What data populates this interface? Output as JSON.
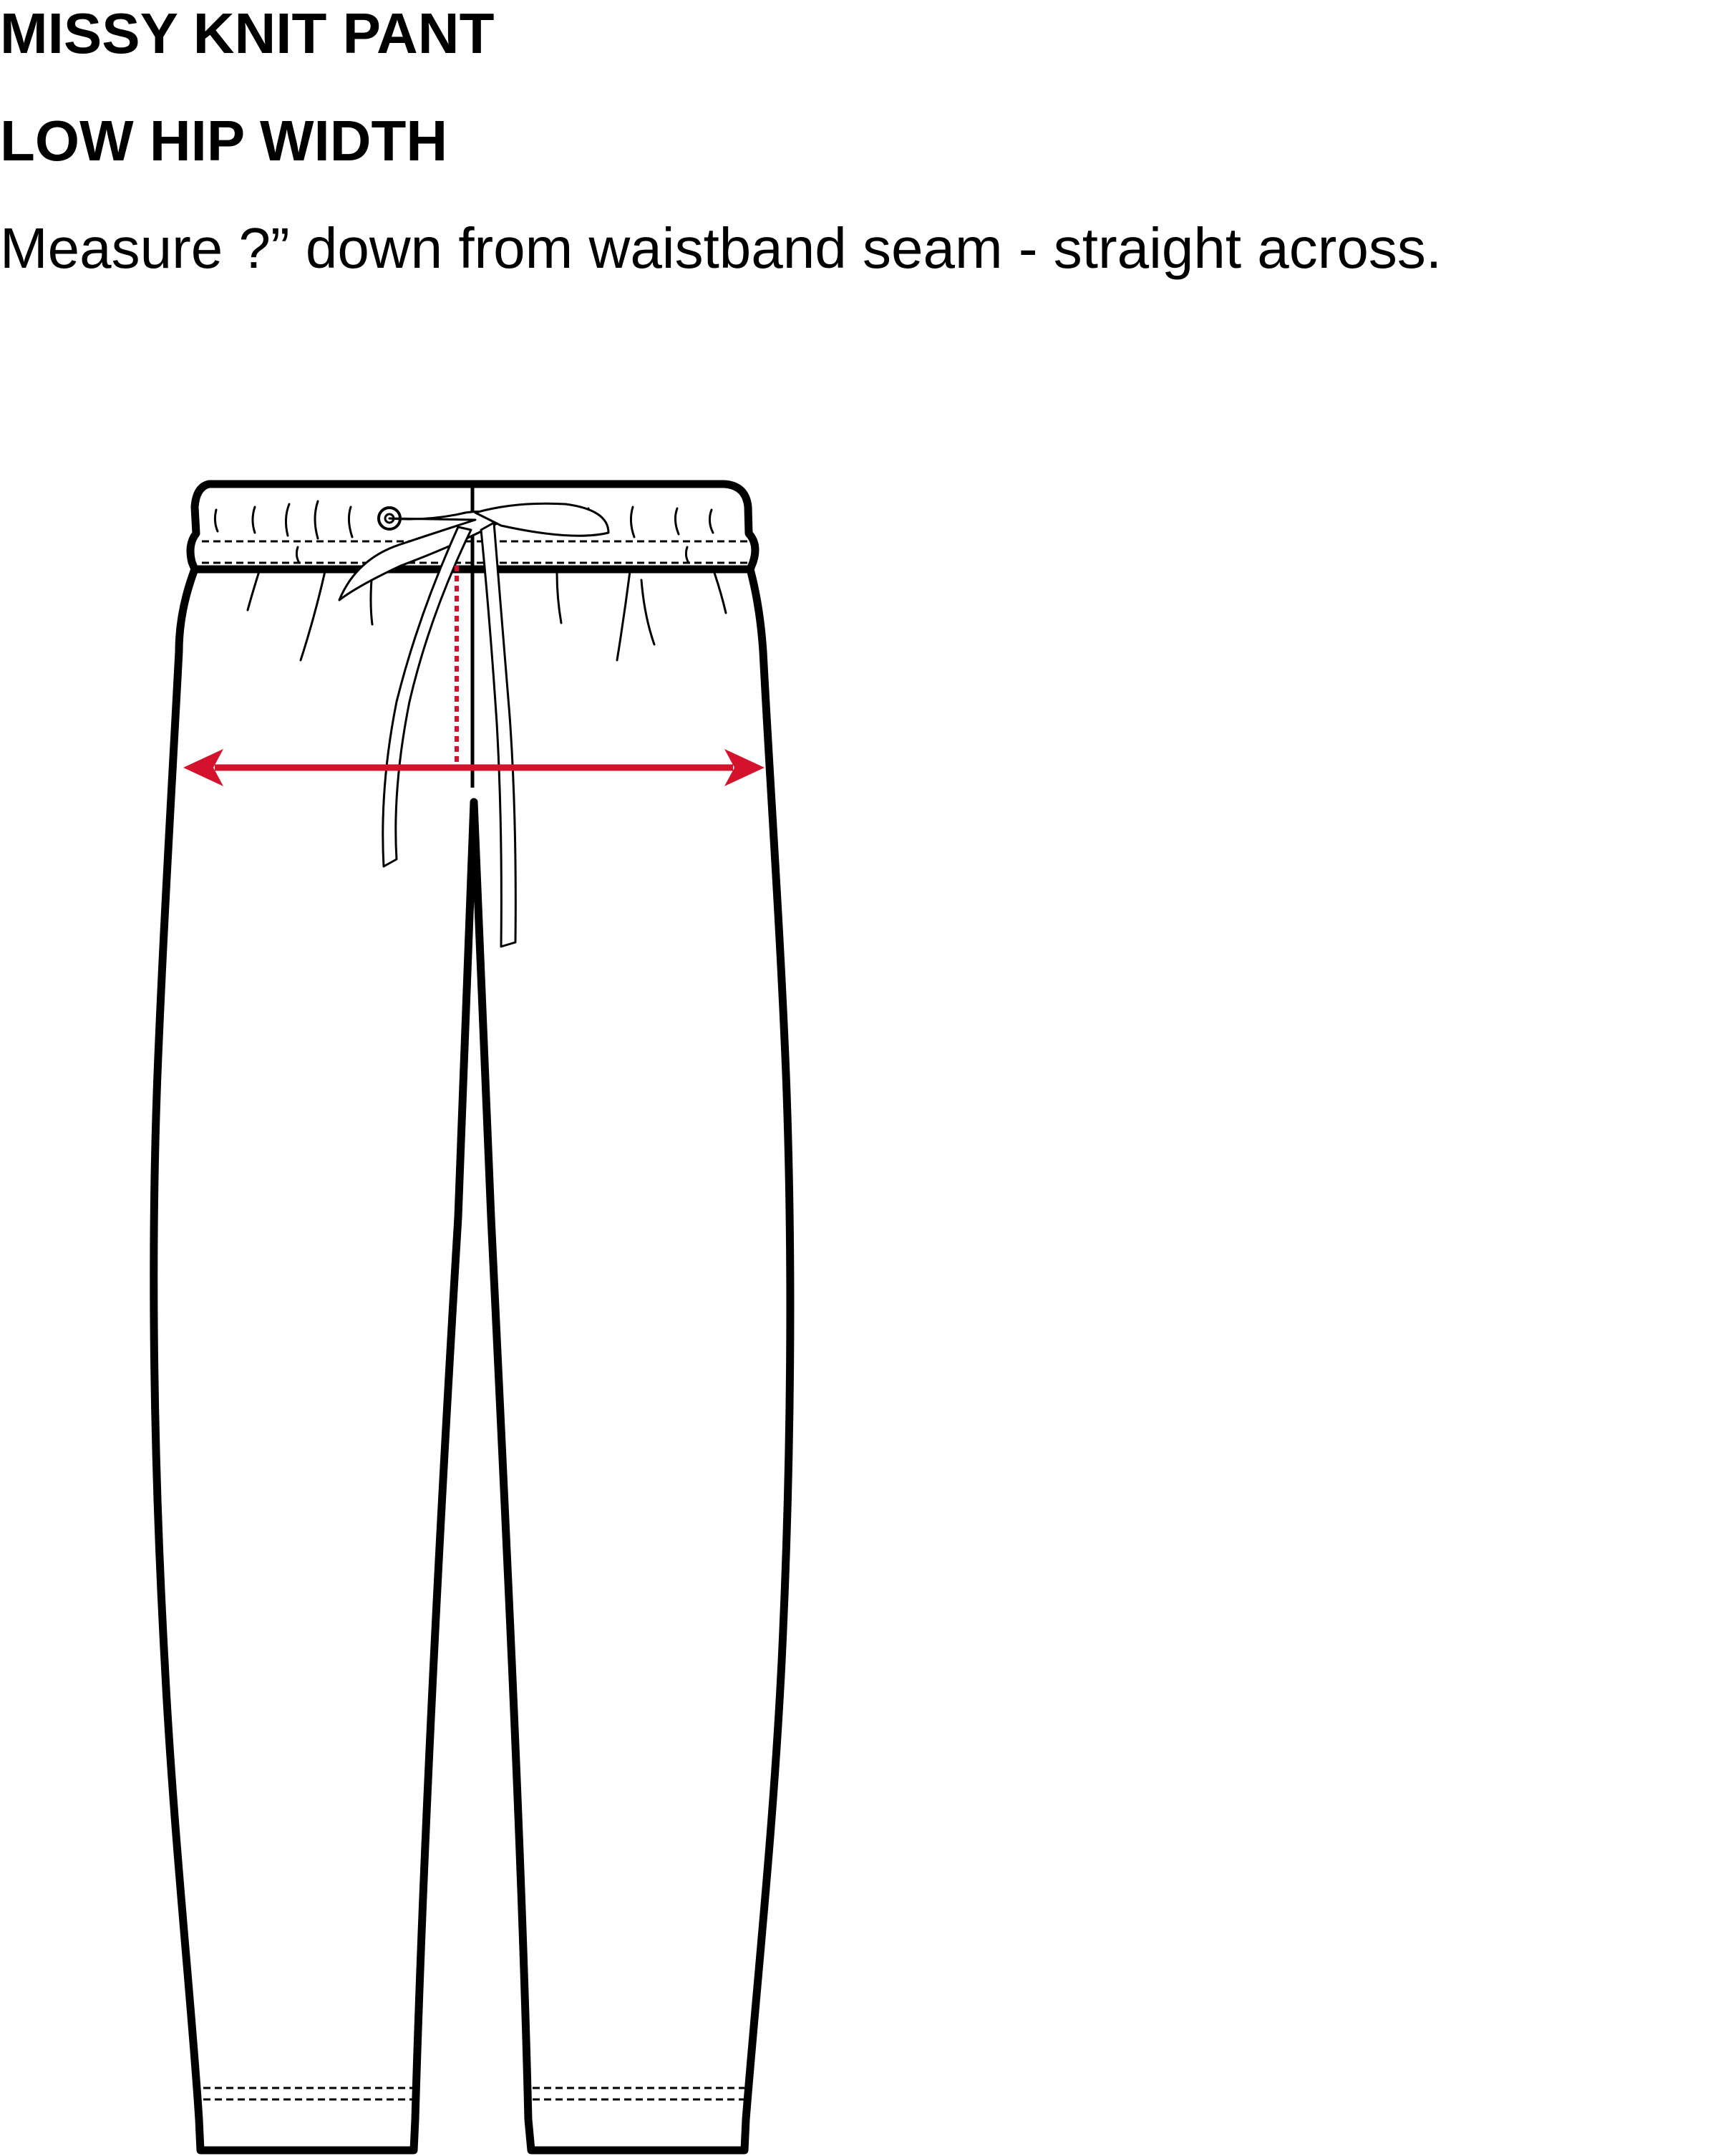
{
  "header": {
    "title": "MISSY KNIT PANT",
    "subtitle": "LOW HIP WIDTH",
    "instruction": "Measure ?” down from waistband seam - straight across."
  },
  "diagram": {
    "garment": "knit pant with drawstring waistband",
    "measurement_color": "#d3122b",
    "line_color": "#000000"
  }
}
